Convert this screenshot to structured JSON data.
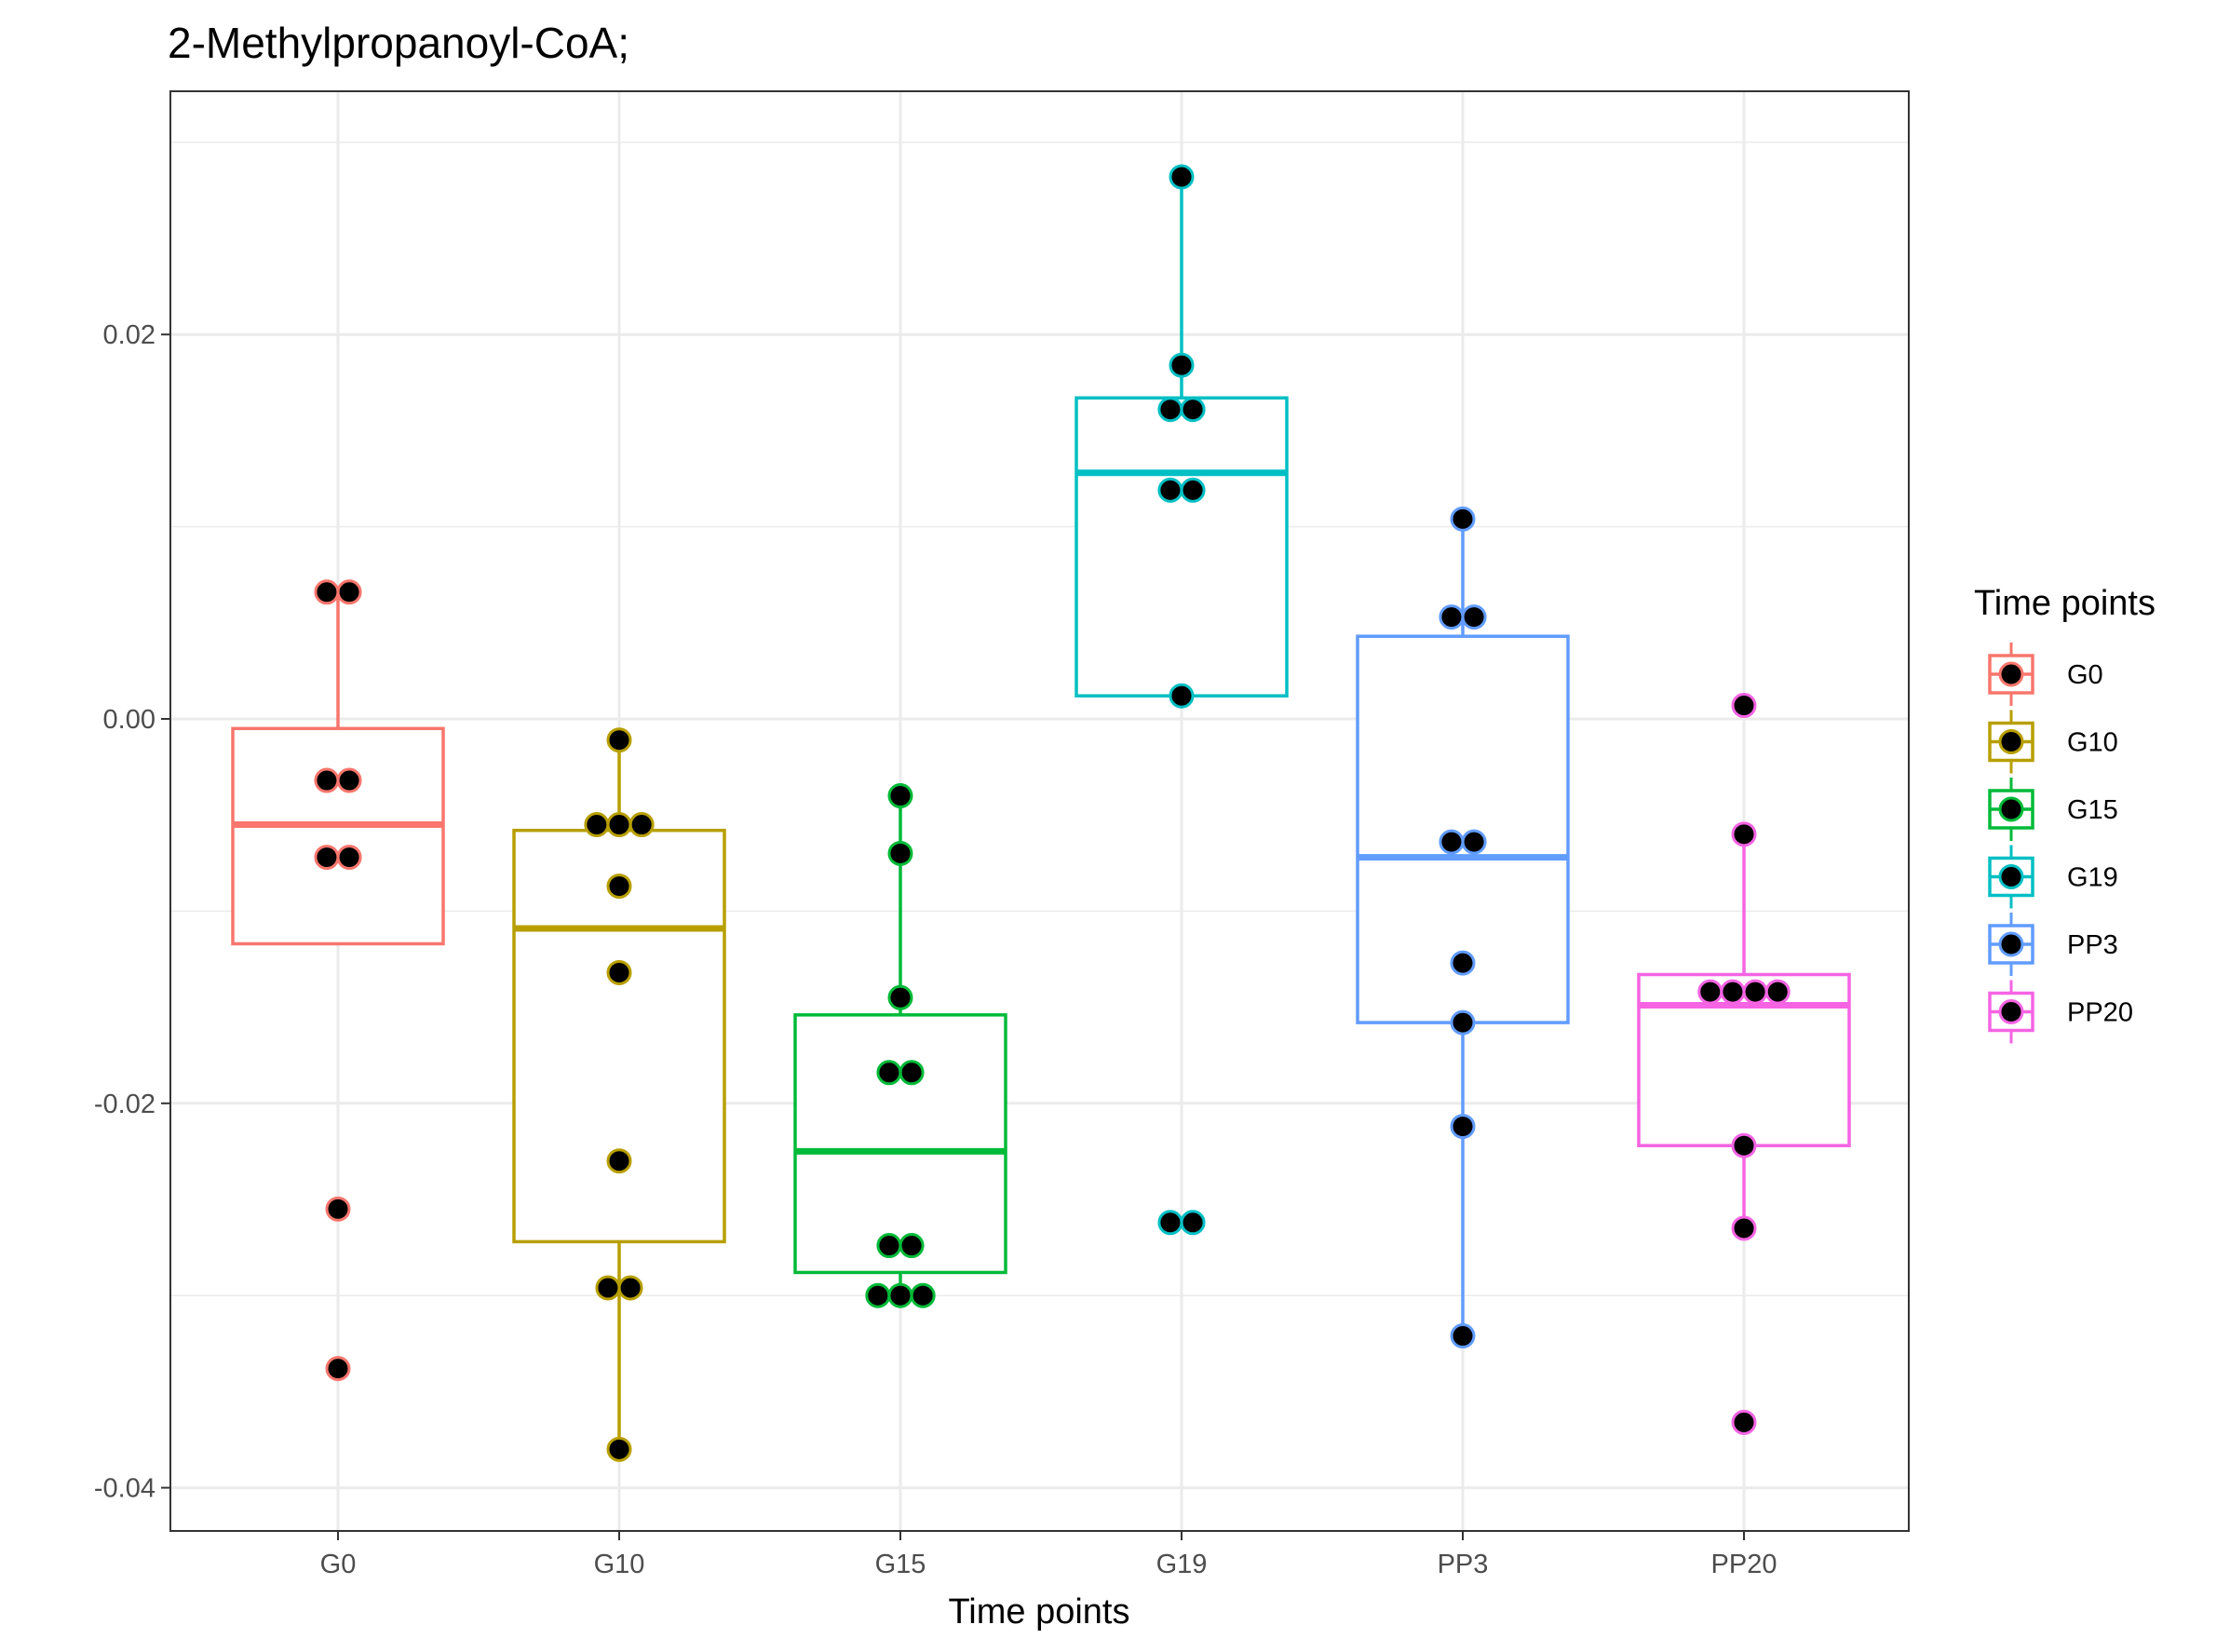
{
  "chart_data": {
    "type": "box",
    "title": "2-Methylpropanoyl-CoA;",
    "xlabel": "Time points",
    "ylabel": "",
    "ylim": [
      -0.042,
      0.033
    ],
    "y_ticks": [
      0.02,
      0.0,
      -0.02,
      -0.04
    ],
    "y_tick_labels": [
      "0.02",
      "0.00",
      "-0.02",
      "-0.04"
    ],
    "grid": true,
    "legend": {
      "title": "Time points",
      "position": "right"
    },
    "categories": [
      "G0",
      "G10",
      "G15",
      "G19",
      "PP3",
      "PP20"
    ],
    "series": [
      {
        "name": "G0",
        "color": "#F8766D",
        "box": {
          "lower_whisker": -0.0117,
          "q1": -0.0117,
          "median": -0.0055,
          "q3": -0.0005,
          "upper_whisker": 0.0066
        },
        "points": [
          {
            "x": -0.08,
            "y": 0.0066
          },
          {
            "x": 0.08,
            "y": 0.0066
          },
          {
            "x": -0.08,
            "y": -0.0032
          },
          {
            "x": 0.08,
            "y": -0.0032
          },
          {
            "x": -0.08,
            "y": -0.0072
          },
          {
            "x": 0.08,
            "y": -0.0072
          },
          {
            "x": 0.0,
            "y": -0.0255
          },
          {
            "x": 0.0,
            "y": -0.0338
          }
        ]
      },
      {
        "name": "G10",
        "color": "#B79F00",
        "box": {
          "lower_whisker": -0.038,
          "q1": -0.0272,
          "median": -0.0109,
          "q3": -0.0058,
          "upper_whisker": -0.0011
        },
        "points": [
          {
            "x": 0.0,
            "y": -0.0011
          },
          {
            "x": -0.16,
            "y": -0.0055
          },
          {
            "x": 0.0,
            "y": -0.0055
          },
          {
            "x": 0.16,
            "y": -0.0055
          },
          {
            "x": 0.0,
            "y": -0.0087
          },
          {
            "x": 0.0,
            "y": -0.0132
          },
          {
            "x": 0.0,
            "y": -0.023
          },
          {
            "x": -0.08,
            "y": -0.0296
          },
          {
            "x": 0.08,
            "y": -0.0296
          },
          {
            "x": 0.0,
            "y": -0.038
          }
        ]
      },
      {
        "name": "G15",
        "color": "#00BA38",
        "box": {
          "lower_whisker": -0.03,
          "q1": -0.0288,
          "median": -0.0225,
          "q3": -0.0154,
          "upper_whisker": -0.004
        },
        "points": [
          {
            "x": 0.0,
            "y": -0.004
          },
          {
            "x": 0.0,
            "y": -0.007
          },
          {
            "x": 0.0,
            "y": -0.0145
          },
          {
            "x": -0.08,
            "y": -0.0184
          },
          {
            "x": 0.08,
            "y": -0.0184
          },
          {
            "x": -0.08,
            "y": -0.0274
          },
          {
            "x": 0.08,
            "y": -0.0274
          },
          {
            "x": -0.16,
            "y": -0.03
          },
          {
            "x": 0.0,
            "y": -0.03
          },
          {
            "x": 0.16,
            "y": -0.03
          }
        ]
      },
      {
        "name": "G19",
        "color": "#00BFC4",
        "box": {
          "lower_whisker": 0.0012,
          "q1": 0.0012,
          "median": 0.0128,
          "q3": 0.0167,
          "upper_whisker": 0.0282
        },
        "points": [
          {
            "x": 0.0,
            "y": 0.0282
          },
          {
            "x": 0.0,
            "y": 0.0184
          },
          {
            "x": -0.08,
            "y": 0.0161
          },
          {
            "x": 0.08,
            "y": 0.0161
          },
          {
            "x": -0.08,
            "y": 0.0119
          },
          {
            "x": 0.08,
            "y": 0.0119
          },
          {
            "x": 0.0,
            "y": 0.0012
          },
          {
            "x": -0.08,
            "y": -0.0262
          },
          {
            "x": 0.08,
            "y": -0.0262
          }
        ]
      },
      {
        "name": "PP3",
        "color": "#619CFF",
        "box": {
          "lower_whisker": -0.0321,
          "q1": -0.0158,
          "median": -0.0072,
          "q3": 0.0043,
          "upper_whisker": 0.0104
        },
        "points": [
          {
            "x": 0.0,
            "y": 0.0104
          },
          {
            "x": -0.08,
            "y": 0.0053
          },
          {
            "x": 0.08,
            "y": 0.0053
          },
          {
            "x": -0.08,
            "y": -0.0064
          },
          {
            "x": 0.08,
            "y": -0.0064
          },
          {
            "x": 0.0,
            "y": -0.0127
          },
          {
            "x": 0.0,
            "y": -0.0158
          },
          {
            "x": 0.0,
            "y": -0.0212
          },
          {
            "x": 0.0,
            "y": -0.0321
          }
        ]
      },
      {
        "name": "PP20",
        "color": "#F564E3",
        "box": {
          "lower_whisker": -0.0265,
          "q1": -0.0222,
          "median": -0.0149,
          "q3": -0.0133,
          "upper_whisker": -0.006
        },
        "points": [
          {
            "x": 0.0,
            "y": 0.0007
          },
          {
            "x": 0.0,
            "y": -0.006
          },
          {
            "x": -0.24,
            "y": -0.0142
          },
          {
            "x": -0.08,
            "y": -0.0142
          },
          {
            "x": 0.08,
            "y": -0.0142
          },
          {
            "x": 0.24,
            "y": -0.0142
          },
          {
            "x": 0.0,
            "y": -0.0222
          },
          {
            "x": 0.0,
            "y": -0.0265
          },
          {
            "x": 0.0,
            "y": -0.0366
          }
        ]
      }
    ]
  }
}
